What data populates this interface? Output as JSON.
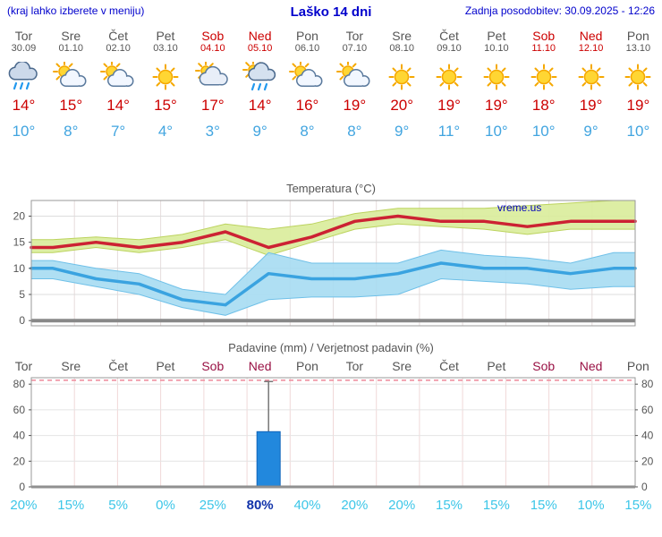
{
  "header": {
    "menu_note": "(kraj lahko izberete v meniju)",
    "title": "Laško 14 dni",
    "last_update": "Zadnja posodobitev: 30.09.2025 - 12:26"
  },
  "forecast": {
    "degree_symbol": "°",
    "days": [
      {
        "name": "Tor",
        "date": "30.09",
        "weekend": false,
        "icon": "rain",
        "tmax": 14,
        "tmin": 10,
        "precip_prob": 20
      },
      {
        "name": "Sre",
        "date": "01.10",
        "weekend": false,
        "icon": "partly",
        "tmax": 15,
        "tmin": 8,
        "precip_prob": 15
      },
      {
        "name": "Čet",
        "date": "02.10",
        "weekend": false,
        "icon": "partly",
        "tmax": 14,
        "tmin": 7,
        "precip_prob": 5
      },
      {
        "name": "Pet",
        "date": "03.10",
        "weekend": false,
        "icon": "sun",
        "tmax": 15,
        "tmin": 4,
        "precip_prob": 0
      },
      {
        "name": "Sob",
        "date": "04.10",
        "weekend": true,
        "icon": "cloudy",
        "tmax": 17,
        "tmin": 3,
        "precip_prob": 25
      },
      {
        "name": "Ned",
        "date": "05.10",
        "weekend": true,
        "icon": "sun_rain",
        "tmax": 14,
        "tmin": 9,
        "precip_prob": 80
      },
      {
        "name": "Pon",
        "date": "06.10",
        "weekend": false,
        "icon": "partly",
        "tmax": 16,
        "tmin": 8,
        "precip_prob": 40
      },
      {
        "name": "Tor",
        "date": "07.10",
        "weekend": false,
        "icon": "partly",
        "tmax": 19,
        "tmin": 8,
        "precip_prob": 20
      },
      {
        "name": "Sre",
        "date": "08.10",
        "weekend": false,
        "icon": "sun",
        "tmax": 20,
        "tmin": 9,
        "precip_prob": 20
      },
      {
        "name": "Čet",
        "date": "09.10",
        "weekend": false,
        "icon": "sun",
        "tmax": 19,
        "tmin": 11,
        "precip_prob": 15
      },
      {
        "name": "Pet",
        "date": "10.10",
        "weekend": false,
        "icon": "sun",
        "tmax": 19,
        "tmin": 10,
        "precip_prob": 15
      },
      {
        "name": "Sob",
        "date": "11.10",
        "weekend": true,
        "icon": "sun",
        "tmax": 18,
        "tmin": 10,
        "precip_prob": 15
      },
      {
        "name": "Ned",
        "date": "12.10",
        "weekend": true,
        "icon": "sun",
        "tmax": 19,
        "tmin": 9,
        "precip_prob": 10
      },
      {
        "name": "Pon",
        "date": "13.10",
        "weekend": false,
        "icon": "sun",
        "tmax": 19,
        "tmin": 10,
        "precip_prob": 15
      }
    ]
  },
  "chart_data": [
    {
      "type": "line",
      "title": "Temperatura (°C)",
      "watermark": "vreme.us",
      "x_labels": [
        "Tor",
        "Sre",
        "Čet",
        "Pet",
        "Sob",
        "Ned",
        "Pon",
        "Tor",
        "Sre",
        "Čet",
        "Pet",
        "Sob",
        "Ned",
        "Pon"
      ],
      "ylim": [
        -1,
        23
      ],
      "yticks": [
        0,
        5,
        10,
        15,
        20
      ],
      "grid": true,
      "legend": "none",
      "series": [
        {
          "name": "Maksimalna temperatura",
          "values": [
            14,
            15,
            14,
            15,
            17,
            14,
            16,
            19,
            20,
            19,
            19,
            18,
            19,
            19
          ],
          "color": "#cc2233"
        },
        {
          "name": "Minimalna temperatura",
          "values": [
            10,
            8,
            7,
            4,
            3,
            9,
            8,
            8,
            9,
            11,
            10,
            10,
            9,
            10
          ],
          "color": "#3aa3e0"
        }
      ],
      "bands": [
        {
          "name": "max-temp-range",
          "upper": [
            15.5,
            16,
            15.5,
            16.5,
            18.5,
            17.5,
            18.5,
            20.5,
            21.5,
            21.5,
            21.5,
            22,
            22.5,
            23
          ],
          "lower": [
            13,
            14,
            13,
            14,
            15.5,
            12.5,
            15,
            17.5,
            18.5,
            18,
            17.5,
            16.5,
            17.5,
            17.5
          ],
          "fill": "#d9ec9a",
          "edge": "#bcd35e"
        },
        {
          "name": "min-temp-range",
          "upper": [
            11.5,
            10,
            9,
            6,
            5,
            13,
            11,
            11,
            11,
            13.5,
            12.5,
            12,
            11,
            13
          ],
          "lower": [
            8,
            6.5,
            5,
            2.5,
            1,
            4,
            4.5,
            4.5,
            5,
            8,
            7.5,
            7,
            6,
            6.5
          ],
          "fill": "#a6dcf2",
          "edge": "#6fc0e8"
        }
      ]
    },
    {
      "type": "bar",
      "title": "Padavine (mm) / Verjetnost padavin (%)",
      "categories": [
        "Tor",
        "Sre",
        "Čet",
        "Pet",
        "Sob",
        "Ned",
        "Pon",
        "Tor",
        "Sre",
        "Čet",
        "Pet",
        "Sob",
        "Ned",
        "Pon"
      ],
      "weekend_flags": [
        false,
        false,
        false,
        false,
        true,
        true,
        false,
        false,
        false,
        false,
        false,
        true,
        true,
        false
      ],
      "values_mm": [
        0,
        0,
        0,
        0,
        0,
        43,
        0,
        0,
        0,
        0,
        0,
        0,
        0,
        0
      ],
      "range_max_mm": [
        0,
        0,
        0,
        0,
        0,
        82,
        0,
        0,
        0,
        0,
        0,
        0,
        0,
        0
      ],
      "probabilities_pct": [
        20,
        15,
        5,
        0,
        25,
        80,
        40,
        20,
        20,
        15,
        15,
        15,
        10,
        15
      ],
      "emphasis_index": 5,
      "ylim": [
        0,
        85
      ],
      "yticks": [
        0,
        20,
        40,
        60,
        80
      ],
      "grid": true,
      "bar_color": "#2288dd"
    }
  ],
  "colors": {
    "link_blue": "#0000cc",
    "tmax_red": "#cc0000",
    "tmin_blue": "#42a5e0",
    "weekend_red": "#cc0000",
    "precip_weekend_red": "#991144",
    "prob_cyan": "#3cc6e8",
    "prob_strong_blue": "#1133aa",
    "bar_blue": "#2288dd"
  }
}
